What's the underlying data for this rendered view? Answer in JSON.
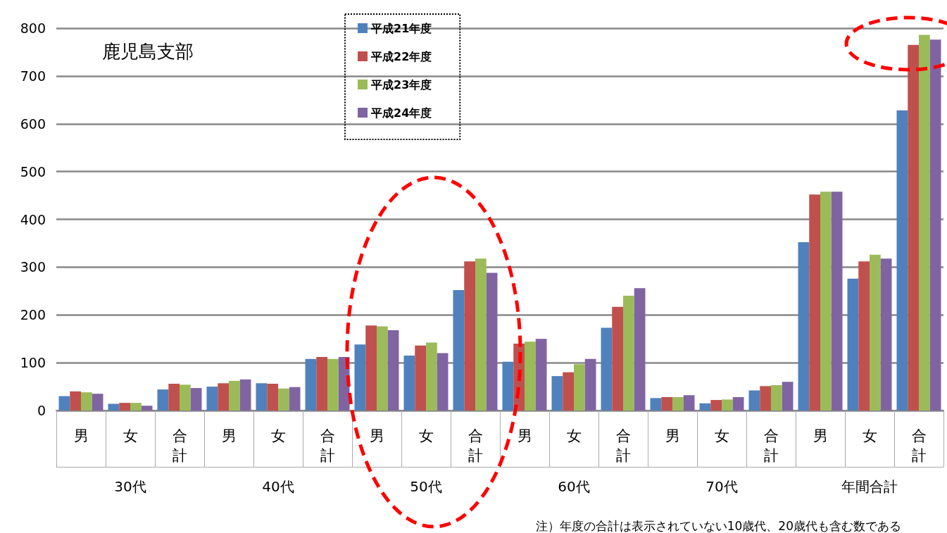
{
  "chart_data": {
    "type": "bar",
    "title": "鹿児島支部",
    "categories": [
      "男",
      "女",
      "合計",
      "男",
      "女",
      "合計",
      "男",
      "女",
      "合計",
      "男",
      "女",
      "合計",
      "男",
      "女",
      "合計",
      "男",
      "女",
      "合計"
    ],
    "series": [
      {
        "name": "平成21年度",
        "color": "#4f81bd",
        "values": [
          30,
          14,
          44,
          50,
          57,
          108,
          138,
          115,
          252,
          102,
          72,
          173,
          26,
          15,
          42,
          352,
          276,
          628
        ]
      },
      {
        "name": "平成22年度",
        "color": "#c0504d",
        "values": [
          40,
          16,
          56,
          57,
          56,
          112,
          178,
          136,
          312,
          140,
          80,
          217,
          28,
          22,
          51,
          452,
          312,
          765
        ]
      },
      {
        "name": "平成23年度",
        "color": "#9bbb59",
        "values": [
          38,
          16,
          54,
          62,
          46,
          108,
          176,
          142,
          318,
          144,
          97,
          240,
          28,
          23,
          53,
          458,
          326,
          786
        ]
      },
      {
        "name": "平成24年度",
        "color": "#8064a2",
        "values": [
          35,
          10,
          47,
          65,
          49,
          112,
          168,
          120,
          288,
          150,
          108,
          256,
          32,
          28,
          60,
          458,
          318,
          776
        ]
      }
    ],
    "annotations": [
      "30代",
      "40代",
      "50代",
      "60代",
      "70代",
      "年間合計",
      "注）年度の合計は表示されていない10歳代、20歳代も含む数である"
    ],
    "ylim": [
      0,
      800
    ],
    "yticks": [
      0,
      100,
      200,
      300,
      400,
      500,
      600,
      700,
      800
    ],
    "grid": "y",
    "legend": "top"
  }
}
